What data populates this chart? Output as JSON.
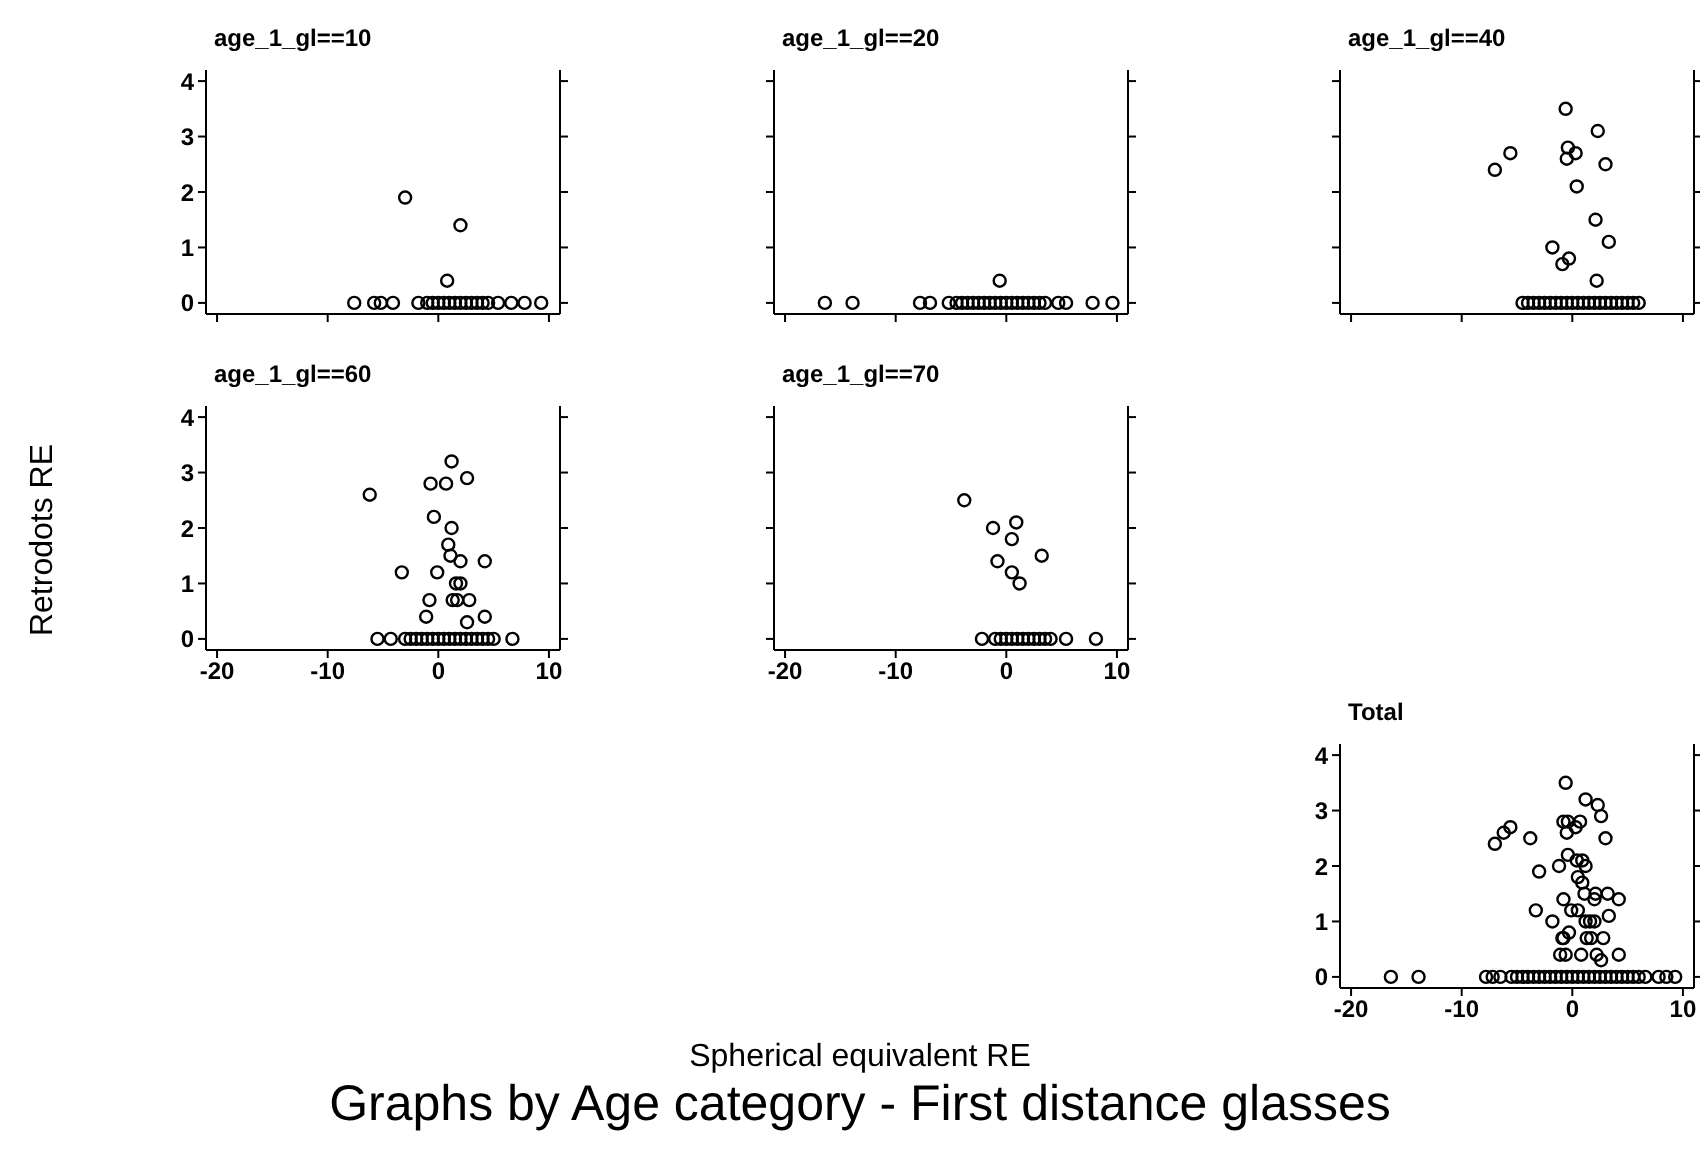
{
  "chart_data": [
    {
      "type": "scatter",
      "title": "age_1_gl==10",
      "tick_labels": "y",
      "marker": "circle",
      "xlim": [
        -21,
        11
      ],
      "xticks": [
        -20,
        -10,
        0,
        10
      ],
      "ylim": [
        -0.2,
        4.2
      ],
      "yticks": [
        0,
        1,
        2,
        3,
        4
      ],
      "series": [
        {
          "color": "#000000",
          "x": [
            -7.6,
            -5.8,
            -5.2,
            -4.1,
            -1.8,
            -1,
            -0.5,
            0,
            0.5,
            1,
            1.5,
            2,
            2.5,
            3,
            3.5,
            4,
            4.5,
            5.4,
            6.6,
            7.8,
            9.3,
            -3,
            2,
            0.8
          ],
          "values": [
            0,
            0,
            0,
            0,
            0,
            0,
            0,
            0,
            0,
            0,
            0,
            0,
            0,
            0,
            0,
            0,
            0,
            0,
            0,
            0,
            0,
            1.9,
            1.4,
            0.4
          ]
        }
      ]
    },
    {
      "type": "scatter",
      "title": "age_1_gl==20",
      "tick_labels": false,
      "marker": "circle",
      "xlim": [
        -21,
        11
      ],
      "xticks": [
        -20,
        -10,
        0,
        10
      ],
      "ylim": [
        -0.2,
        4.2
      ],
      "yticks": [
        0,
        1,
        2,
        3,
        4
      ],
      "series": [
        {
          "color": "#000000",
          "x": [
            -16.4,
            -13.9,
            -7.8,
            -6.9,
            -5.2,
            -4.5,
            -4,
            -3.5,
            -3,
            -2.5,
            -2,
            -1.5,
            -1,
            -0.5,
            0,
            0.5,
            1,
            1.5,
            2,
            2.5,
            3,
            3.5,
            4.7,
            5.4,
            7.8,
            9.6,
            -0.6
          ],
          "values": [
            0,
            0,
            0,
            0,
            0,
            0,
            0,
            0,
            0,
            0,
            0,
            0,
            0,
            0,
            0,
            0,
            0,
            0,
            0,
            0,
            0,
            0,
            0,
            0,
            0,
            0,
            0.4
          ]
        }
      ]
    },
    {
      "type": "scatter",
      "title": "age_1_gl==40",
      "tick_labels": false,
      "marker": "circle",
      "xlim": [
        -21,
        11
      ],
      "xticks": [
        -20,
        -10,
        0,
        10
      ],
      "ylim": [
        -0.2,
        4.2
      ],
      "yticks": [
        0,
        1,
        2,
        3,
        4
      ],
      "series": [
        {
          "color": "#000000",
          "x": [
            -0.6,
            2.3,
            -5.6,
            -7,
            -0.4,
            -0.5,
            0.3,
            3,
            0.4,
            2.1,
            3.3,
            -1.8,
            -0.9,
            -0.3,
            2.2,
            -4.5,
            -4,
            -3.5,
            -3,
            -2.5,
            -2,
            -1.5,
            -1,
            -0.5,
            0,
            0.5,
            1,
            1.5,
            2,
            2.5,
            3,
            3.5,
            4,
            4.5,
            5,
            5.5,
            6
          ],
          "values": [
            3.5,
            3.1,
            2.7,
            2.4,
            2.8,
            2.6,
            2.7,
            2.5,
            2.1,
            1.5,
            1.1,
            1,
            0.7,
            0.8,
            0.4,
            0,
            0,
            0,
            0,
            0,
            0,
            0,
            0,
            0,
            0,
            0,
            0,
            0,
            0,
            0,
            0,
            0,
            0,
            0,
            0,
            0,
            0
          ]
        }
      ]
    },
    {
      "type": "scatter",
      "title": "age_1_gl==60",
      "ylabel": "Retrodots RE",
      "marker": "circle",
      "xlim": [
        -21,
        11
      ],
      "xticks": [
        -20,
        -10,
        0,
        10
      ],
      "ylim": [
        -0.2,
        4.2
      ],
      "yticks": [
        0,
        1,
        2,
        3,
        4
      ],
      "series": [
        {
          "color": "#000000",
          "x": [
            1.2,
            -0.7,
            0.7,
            2.6,
            -6.2,
            -0.4,
            1.2,
            0.9,
            1.1,
            2,
            4.2,
            -3.3,
            -0.1,
            1.6,
            2,
            -0.8,
            1.3,
            1.7,
            2.8,
            -1.1,
            4.2,
            2.6,
            -5.5,
            -4.3,
            -3,
            -2.5,
            -2,
            -1.5,
            -1,
            -0.5,
            0,
            0.5,
            1,
            1.5,
            2,
            2.5,
            3,
            3.5,
            4,
            4.5,
            5,
            6.7
          ],
          "values": [
            3.2,
            2.8,
            2.8,
            2.9,
            2.6,
            2.2,
            2,
            1.7,
            1.5,
            1.4,
            1.4,
            1.2,
            1.2,
            1,
            1,
            0.7,
            0.7,
            0.7,
            0.7,
            0.4,
            0.4,
            0.3,
            0,
            0,
            0,
            0,
            0,
            0,
            0,
            0,
            0,
            0,
            0,
            0,
            0,
            0,
            0,
            0,
            0,
            0,
            0,
            0
          ]
        }
      ]
    },
    {
      "type": "scatter",
      "title": "age_1_gl==70",
      "xlabel": "Spherical equivalent RE",
      "annotations": [
        "Graphs by Age category - First distance glasses"
      ],
      "tick_labels": "x",
      "marker": "circle",
      "xlim": [
        -21,
        11
      ],
      "xticks": [
        -20,
        -10,
        0,
        10
      ],
      "ylim": [
        -0.2,
        4.2
      ],
      "yticks": [
        0,
        1,
        2,
        3,
        4
      ],
      "series": [
        {
          "color": "#000000",
          "x": [
            -3.8,
            -1.2,
            0.9,
            0.5,
            -0.8,
            3.2,
            0.5,
            1.2,
            -2.2,
            -1,
            -0.5,
            0,
            0.5,
            1,
            1.5,
            2,
            2.5,
            3,
            3.5,
            4,
            5.4,
            8.1
          ],
          "values": [
            2.5,
            2,
            2.1,
            1.8,
            1.4,
            1.5,
            1.2,
            1,
            0,
            0,
            0,
            0,
            0,
            0,
            0,
            0,
            0,
            0,
            0,
            0,
            0,
            0
          ]
        }
      ]
    },
    {
      "type": "scatter",
      "title": "Total",
      "marker": "circle",
      "xlim": [
        -21,
        11
      ],
      "xticks": [
        -20,
        -10,
        0,
        10
      ],
      "ylim": [
        -0.2,
        4.2
      ],
      "yticks": [
        0,
        1,
        2,
        3,
        4
      ],
      "series": [
        {
          "color": "#000000",
          "x": [
            -3,
            2,
            0.8,
            -0.6,
            -0.6,
            2.3,
            -5.6,
            -7,
            -0.4,
            -0.5,
            0.3,
            3,
            0.4,
            2.1,
            3.3,
            -1.8,
            -0.9,
            -0.3,
            2.2,
            1.2,
            -0.8,
            0.7,
            2.6,
            -6.2,
            -0.4,
            1.2,
            0.9,
            1.1,
            4.2,
            -3.3,
            -0.1,
            1.6,
            2,
            -0.8,
            1.3,
            1.7,
            2.8,
            -1.1,
            4.2,
            2.6,
            -3.8,
            -1.2,
            0.9,
            0.5,
            -0.8,
            3.2,
            0.5,
            1.2,
            -16.4,
            -13.9,
            -7.8,
            -7.2,
            -6.5,
            -5.5,
            -5,
            -4.5,
            -4,
            -3.5,
            -3,
            -2.5,
            -2,
            -1.5,
            -1,
            -0.5,
            0,
            0.5,
            1,
            1.5,
            2,
            2.5,
            3,
            3.5,
            4,
            4.5,
            5,
            5.5,
            6,
            6.6,
            7.8,
            8.5,
            9.3
          ],
          "values": [
            1.9,
            1.4,
            0.4,
            0.4,
            3.5,
            3.1,
            2.7,
            2.4,
            2.8,
            2.6,
            2.7,
            2.5,
            2.1,
            1.5,
            1.1,
            1,
            0.7,
            0.8,
            0.4,
            3.2,
            2.8,
            2.8,
            2.9,
            2.6,
            2.2,
            2,
            1.7,
            1.5,
            1.4,
            1.2,
            1.2,
            1,
            1,
            0.7,
            0.7,
            0.7,
            0.7,
            0.4,
            0.4,
            0.3,
            2.5,
            2,
            2.1,
            1.8,
            1.4,
            1.5,
            1.2,
            1,
            0,
            0,
            0,
            0,
            0,
            0,
            0,
            0,
            0,
            0,
            0,
            0,
            0,
            0,
            0,
            0,
            0,
            0,
            0,
            0,
            0,
            0,
            0,
            0,
            0,
            0,
            0,
            0,
            0,
            0,
            0,
            0,
            0
          ]
        }
      ]
    }
  ]
}
